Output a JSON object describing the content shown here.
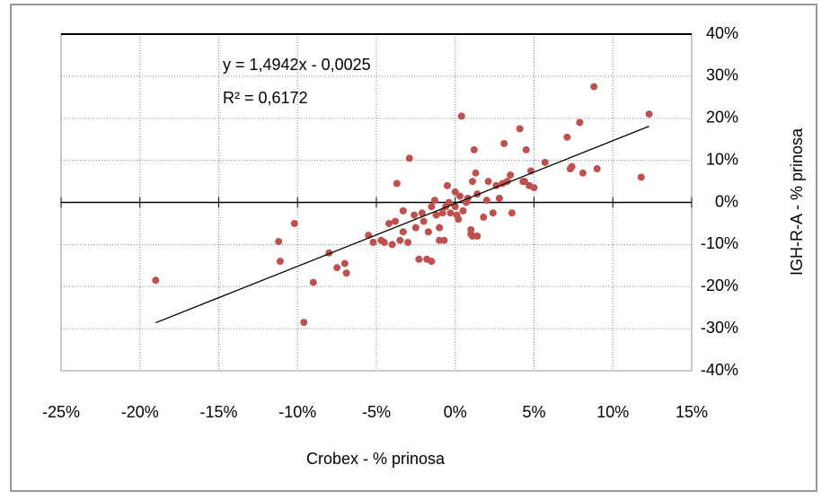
{
  "chart_data": {
    "type": "scatter",
    "x_label": "Crobex - % prinosa",
    "y_label": "IGH-R-A - % prinosa",
    "annotations": [
      "y = 1,4942x - 0,0025",
      "R² = 0,6172"
    ],
    "xlim": [
      -25,
      15
    ],
    "ylim": [
      -40,
      40
    ],
    "xticks": [
      {
        "value": -25,
        "label": "-25%"
      },
      {
        "value": -20,
        "label": "-20%"
      },
      {
        "value": -15,
        "label": "-15%"
      },
      {
        "value": -10,
        "label": "-10%"
      },
      {
        "value": -5,
        "label": "-5%"
      },
      {
        "value": 0,
        "label": "0%"
      },
      {
        "value": 5,
        "label": "5%"
      },
      {
        "value": 10,
        "label": "10%"
      },
      {
        "value": 15,
        "label": "15%"
      }
    ],
    "yticks": [
      {
        "value": -40,
        "label": "-40%"
      },
      {
        "value": -30,
        "label": "-30%"
      },
      {
        "value": -20,
        "label": "-20%"
      },
      {
        "value": -10,
        "label": "-10%"
      },
      {
        "value": 0,
        "label": "0%"
      },
      {
        "value": 10,
        "label": "10%"
      },
      {
        "value": 20,
        "label": "20%"
      },
      {
        "value": 30,
        "label": "30%"
      },
      {
        "value": 40,
        "label": "40%"
      }
    ],
    "grid": true,
    "series": [
      {
        "color": "#c0504d",
        "x": [
          -19,
          -11.2,
          -11.1,
          -10.2,
          -9.6,
          -9,
          -8,
          -7.5,
          -7,
          -6.9,
          -5.5,
          -5.2,
          -4.7,
          -4.5,
          -4.2,
          -4,
          -3.8,
          -3.7,
          -3.5,
          -3.3,
          -3.3,
          -3,
          -2.9,
          -2.6,
          -2.5,
          -2.3,
          -2.1,
          -2,
          -1.8,
          -1.7,
          -1.5,
          -1.5,
          -1.3,
          -1.2,
          -1,
          -1,
          -0.8,
          -0.7,
          -0.6,
          -0.5,
          -0.4,
          -0.3,
          0,
          0,
          0.1,
          0.2,
          0.3,
          0.4,
          0.5,
          0.7,
          0.8,
          1,
          1,
          1.1,
          1.1,
          1.2,
          1.3,
          1.4,
          1.4,
          1.8,
          2,
          2.1,
          2.4,
          2.6,
          2.8,
          3,
          3.1,
          3.3,
          3.5,
          3.6,
          4.1,
          4.3,
          4.4,
          4.5,
          4.7,
          4.8,
          5,
          5.7,
          7.1,
          7.3,
          7.4,
          7.9,
          8.1,
          8.8,
          9,
          11.8,
          12.3
        ],
        "values": [
          -18.5,
          -9.3,
          -14,
          -5,
          -28.5,
          -19,
          -12,
          -15.5,
          -14.5,
          -16.8,
          -7.8,
          -9.5,
          -9,
          -9.5,
          -5,
          -10,
          -4.5,
          4.5,
          -9,
          -7,
          -2,
          -9.5,
          10.5,
          -3,
          -6,
          -13.5,
          -2.5,
          -4.5,
          -13.5,
          -7,
          -14,
          -1,
          0.5,
          -3,
          -6,
          -9,
          -2.5,
          -9,
          -1,
          4,
          0,
          -2.5,
          -1,
          2.5,
          -3,
          -4,
          1.5,
          20.5,
          -2,
          0,
          1,
          -7.5,
          -6.5,
          5,
          -8,
          12.5,
          7,
          -8,
          2,
          -3.5,
          0.5,
          5,
          -2.5,
          4,
          1,
          4.5,
          14,
          5,
          6.5,
          -2.5,
          17.5,
          5,
          5,
          12.5,
          4,
          7.5,
          3.5,
          9.5,
          15.5,
          8,
          8.5,
          19,
          7,
          27.5,
          8,
          6,
          21
        ]
      }
    ],
    "trendline": {
      "color": "#000000",
      "x": [
        -19,
        12.3
      ],
      "values": [
        -28.6,
        18.1
      ]
    }
  }
}
